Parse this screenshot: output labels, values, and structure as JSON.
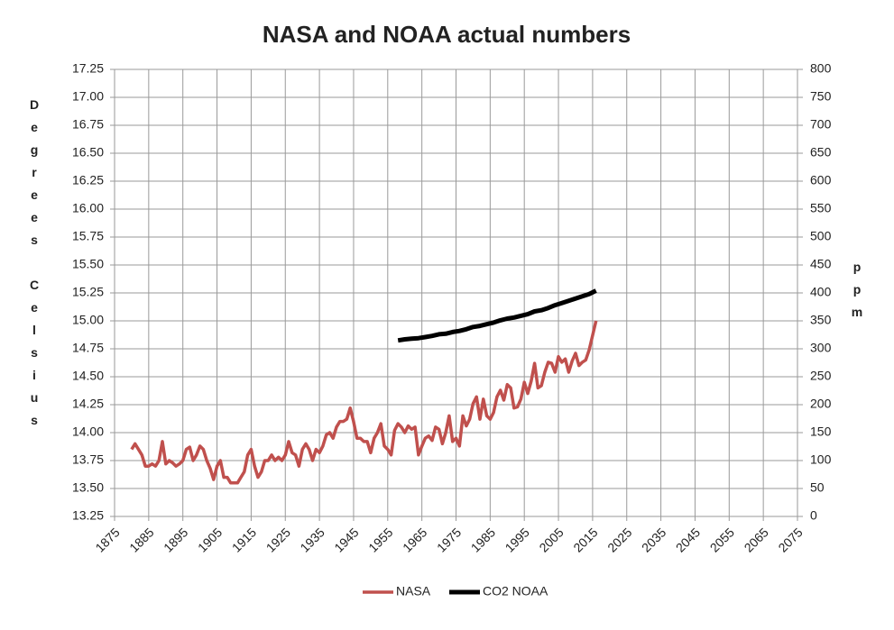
{
  "chart_data": {
    "type": "line",
    "title": "NASA and NOAA actual numbers",
    "ylabel": "Degrees Celsius",
    "y2label": "ppm",
    "xlim": [
      1875,
      2075
    ],
    "xticks": [
      1875,
      1885,
      1895,
      1905,
      1915,
      1925,
      1935,
      1945,
      1955,
      1965,
      1975,
      1985,
      1995,
      2005,
      2015,
      2025,
      2035,
      2045,
      2055,
      2065,
      2075
    ],
    "ylim": [
      13.25,
      17.25
    ],
    "yticks": [
      13.25,
      {
        "value": 13.5,
        "label": "13.50"
      },
      13.75,
      {
        "value": 14,
        "label": "14.00"
      },
      14.25,
      {
        "value": 14.5,
        "label": "14.50"
      },
      14.75,
      {
        "value": 15,
        "label": "15.00"
      },
      15.25,
      {
        "value": 15.5,
        "label": "15.50"
      },
      15.75,
      {
        "value": 16,
        "label": "16.00"
      },
      16.25,
      {
        "value": 16.5,
        "label": "16.50"
      },
      16.75,
      {
        "value": 17,
        "label": "17.00"
      },
      17.25
    ],
    "y2lim": [
      0,
      800
    ],
    "y2ticks": [
      0,
      50,
      100,
      150,
      200,
      250,
      300,
      350,
      400,
      450,
      500,
      550,
      600,
      650,
      700,
      750,
      800
    ],
    "grid": true,
    "legend": "bottom",
    "series": [
      {
        "name": "NASA",
        "color": "#c0504d",
        "x": [
          1880,
          1881,
          1882,
          1883,
          1884,
          1885,
          1886,
          1887,
          1888,
          1889,
          1890,
          1891,
          1892,
          1893,
          1894,
          1895,
          1896,
          1897,
          1898,
          1899,
          1900,
          1901,
          1902,
          1903,
          1904,
          1905,
          1906,
          1907,
          1908,
          1909,
          1910,
          1911,
          1912,
          1913,
          1914,
          1915,
          1916,
          1917,
          1918,
          1919,
          1920,
          1921,
          1922,
          1923,
          1924,
          1925,
          1926,
          1927,
          1928,
          1929,
          1930,
          1931,
          1932,
          1933,
          1934,
          1935,
          1936,
          1937,
          1938,
          1939,
          1940,
          1941,
          1942,
          1943,
          1944,
          1945,
          1946,
          1947,
          1948,
          1949,
          1950,
          1951,
          1952,
          1953,
          1954,
          1955,
          1956,
          1957,
          1958,
          1959,
          1960,
          1961,
          1962,
          1963,
          1964,
          1965,
          1966,
          1967,
          1968,
          1969,
          1970,
          1971,
          1972,
          1973,
          1974,
          1975,
          1976,
          1977,
          1978,
          1979,
          1980,
          1981,
          1982,
          1983,
          1984,
          1985,
          1986,
          1987,
          1988,
          1989,
          1990,
          1991,
          1992,
          1993,
          1994,
          1995,
          1996,
          1997,
          1998,
          1999,
          2000,
          2001,
          2002,
          2003,
          2004,
          2005,
          2006,
          2007,
          2008,
          2009,
          2010,
          2011,
          2012,
          2013,
          2014,
          2015,
          2016
        ],
        "values": [
          13.85,
          13.9,
          13.85,
          13.8,
          13.7,
          13.7,
          13.72,
          13.7,
          13.75,
          13.92,
          13.72,
          13.75,
          13.73,
          13.7,
          13.72,
          13.75,
          13.85,
          13.87,
          13.75,
          13.8,
          13.88,
          13.85,
          13.75,
          13.68,
          13.58,
          13.7,
          13.75,
          13.6,
          13.6,
          13.55,
          13.55,
          13.55,
          13.6,
          13.65,
          13.8,
          13.85,
          13.7,
          13.6,
          13.65,
          13.75,
          13.75,
          13.8,
          13.75,
          13.78,
          13.75,
          13.8,
          13.92,
          13.82,
          13.8,
          13.7,
          13.85,
          13.9,
          13.85,
          13.75,
          13.85,
          13.82,
          13.88,
          13.98,
          14.0,
          13.95,
          14.05,
          14.1,
          14.1,
          14.12,
          14.22,
          14.1,
          13.95,
          13.95,
          13.92,
          13.92,
          13.82,
          13.95,
          14.0,
          14.08,
          13.88,
          13.85,
          13.8,
          14.02,
          14.08,
          14.05,
          14.0,
          14.06,
          14.03,
          14.05,
          13.8,
          13.88,
          13.95,
          13.97,
          13.93,
          14.05,
          14.03,
          13.9,
          14.0,
          14.15,
          13.92,
          13.95,
          13.88,
          14.15,
          14.06,
          14.12,
          14.26,
          14.32,
          14.12,
          14.3,
          14.15,
          14.12,
          14.18,
          14.32,
          14.38,
          14.29,
          14.43,
          14.4,
          14.22,
          14.23,
          14.3,
          14.45,
          14.35,
          14.46,
          14.62,
          14.4,
          14.42,
          14.54,
          14.63,
          14.62,
          14.54,
          14.68,
          14.63,
          14.66,
          14.54,
          14.64,
          14.71,
          14.6,
          14.63,
          14.65,
          14.74,
          14.87,
          15.0
        ]
      },
      {
        "name": "CO2 NOAA",
        "color": "#000000",
        "axis": "y2",
        "x": [
          1958,
          1960,
          1962,
          1964,
          1966,
          1968,
          1970,
          1972,
          1974,
          1976,
          1978,
          1980,
          1982,
          1984,
          1986,
          1988,
          1990,
          1992,
          1994,
          1996,
          1998,
          2000,
          2002,
          2004,
          2006,
          2008,
          2010,
          2012,
          2014,
          2016
        ],
        "values": [
          315,
          317,
          318,
          319,
          321,
          323,
          326,
          327,
          330,
          332,
          335,
          339,
          341,
          344,
          347,
          351,
          354,
          356,
          359,
          362,
          367,
          369,
          373,
          378,
          382,
          386,
          390,
          394,
          398,
          404
        ]
      }
    ]
  }
}
